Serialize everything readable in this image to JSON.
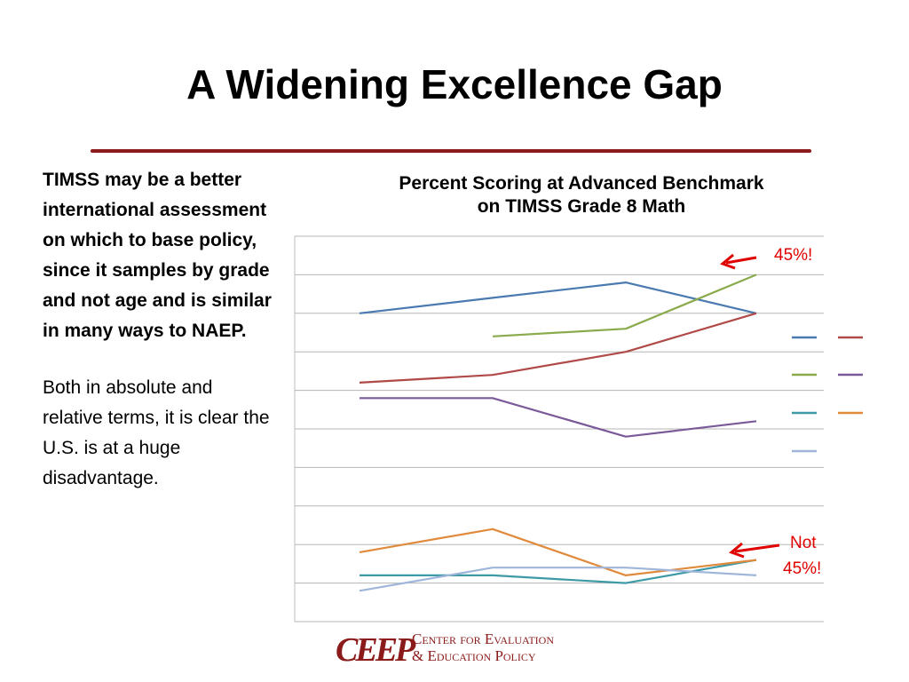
{
  "slide": {
    "title": "A Widening Excellence Gap",
    "paragraph_bold": "TIMSS may be a better international assessment on which to base policy, since it samples by grade and not age and is similar in many ways to NAEP.",
    "paragraph_normal": "Both in absolute and relative terms, it is clear the U.S. is at a huge disadvantage.",
    "colors": {
      "title_rule": "#8b1a1a",
      "callout_text": "#e00000",
      "arrow": "#e00000"
    }
  },
  "logo": {
    "mark": "CEEP",
    "line1": "Center for Evaluation",
    "line2": "& Education Policy"
  },
  "chart_data": {
    "type": "line",
    "title_line1": "Percent Scoring at Advanced Benchmark",
    "title_line2": "on TIMSS Grade 8 Math",
    "x": [
      1,
      2,
      3,
      4
    ],
    "ylim": [
      0,
      50
    ],
    "grid": true,
    "legend_placement": "right",
    "series": [
      {
        "color": "#4a7ab0",
        "values": [
          40,
          42,
          44,
          40
        ]
      },
      {
        "color": "#b04a48",
        "values": [
          31,
          32,
          35,
          40
        ]
      },
      {
        "color": "#8aab4c",
        "values": [
          null,
          37,
          38,
          45
        ]
      },
      {
        "color": "#7a5a98",
        "values": [
          29,
          29,
          24,
          26
        ]
      },
      {
        "color": "#3e9aa6",
        "values": [
          6,
          6,
          5,
          8
        ]
      },
      {
        "color": "#e08a3c",
        "values": [
          9,
          12,
          6,
          8
        ]
      },
      {
        "color": "#9fb6da",
        "values": [
          4,
          7,
          7,
          6
        ]
      }
    ],
    "annotations": [
      {
        "text": "45%!",
        "x": 4,
        "y": 45
      },
      {
        "text": "Not",
        "text2": "45%!",
        "x": 4,
        "y": 8
      }
    ]
  }
}
